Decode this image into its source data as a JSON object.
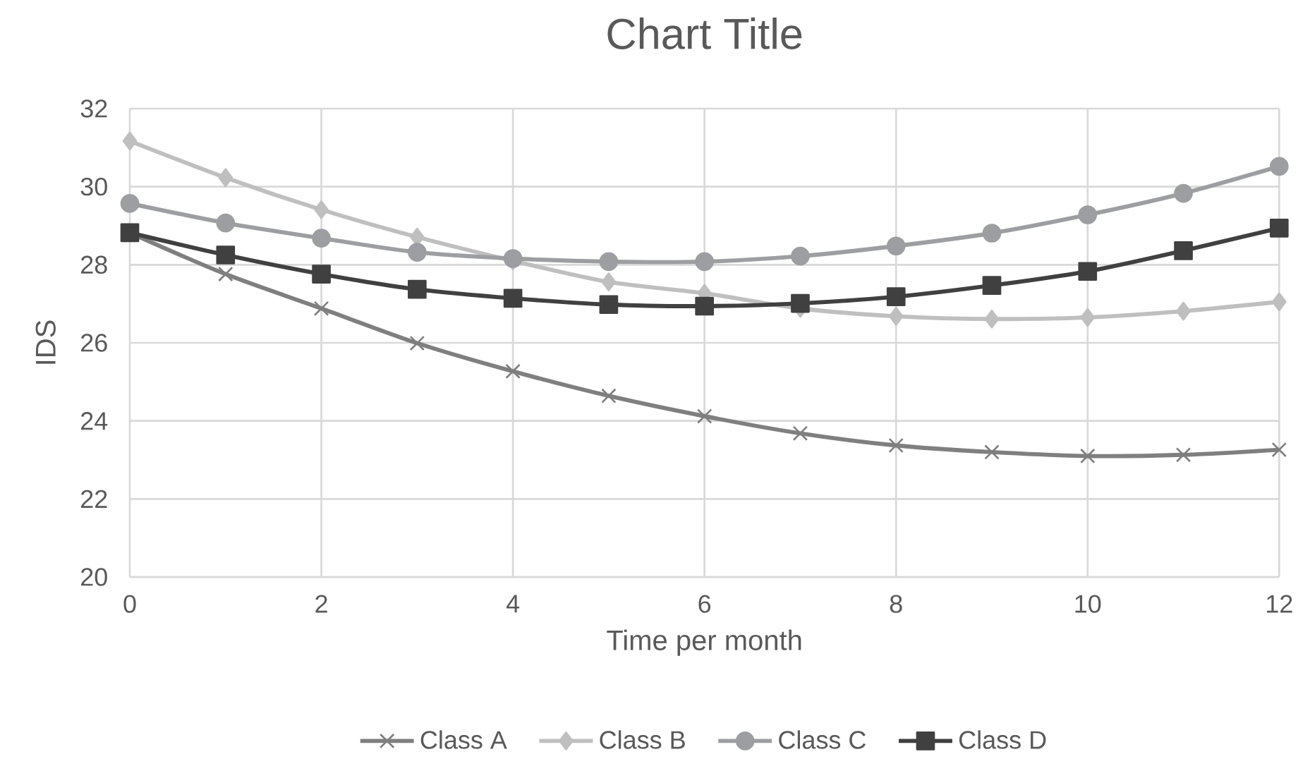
{
  "chart_data": {
    "type": "line",
    "title": "Chart Title",
    "xlabel": "Time per month",
    "ylabel": "IDS",
    "x": [
      0,
      1,
      2,
      3,
      4,
      5,
      6,
      7,
      8,
      9,
      10,
      11,
      12
    ],
    "xlim": [
      0,
      12
    ],
    "xticks": [
      0,
      2,
      4,
      6,
      8,
      10,
      12
    ],
    "ylim": [
      20,
      32
    ],
    "yticks": [
      20,
      22,
      24,
      26,
      28,
      30,
      32
    ],
    "grid": true,
    "legend": "bottom",
    "line_style": "solid",
    "series": [
      {
        "name": "Class A",
        "color": "#7f7f7f",
        "marker": "cross",
        "values": [
          28.82,
          27.76,
          26.88,
          25.99,
          25.27,
          24.64,
          24.12,
          23.68,
          23.37,
          23.2,
          23.1,
          23.13,
          23.26
        ]
      },
      {
        "name": "Class B",
        "color": "#bfbfbf",
        "marker": "diamond",
        "values": [
          31.17,
          30.23,
          29.41,
          28.71,
          28.1,
          27.56,
          27.27,
          26.88,
          26.68,
          26.61,
          26.65,
          26.81,
          27.05
        ]
      },
      {
        "name": "Class C",
        "color": "#9c9ea1",
        "marker": "circle",
        "values": [
          29.57,
          29.07,
          28.68,
          28.32,
          28.16,
          28.08,
          28.08,
          28.22,
          28.48,
          28.81,
          29.28,
          29.83,
          30.52
        ]
      },
      {
        "name": "Class D",
        "color": "#404040",
        "marker": "square",
        "values": [
          28.82,
          28.25,
          27.76,
          27.37,
          27.14,
          26.98,
          26.94,
          27.01,
          27.18,
          27.47,
          27.83,
          28.36,
          28.94
        ]
      }
    ]
  }
}
